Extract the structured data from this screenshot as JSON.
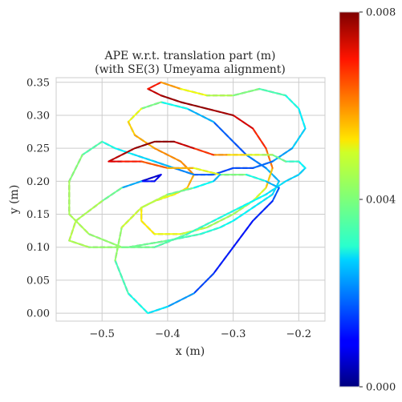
{
  "chart_data": {
    "type": "line",
    "title": "APE w.r.t. translation part (m)",
    "subtitle": "(with SE(3) Umeyama alignment)",
    "xlabel": "x (m)",
    "ylabel": "y (m)",
    "xlim": [
      -0.57,
      -0.16
    ],
    "ylim": [
      -0.012,
      0.357
    ],
    "xticks": [
      -0.5,
      -0.4,
      -0.3,
      -0.2
    ],
    "xtick_labels": [
      "−0.5",
      "−0.4",
      "−0.3",
      "−0.2"
    ],
    "yticks": [
      0.0,
      0.05,
      0.1,
      0.15,
      0.2,
      0.25,
      0.3,
      0.35
    ],
    "ytick_labels": [
      "0.00",
      "0.05",
      "0.10",
      "0.15",
      "0.20",
      "0.25",
      "0.30",
      "0.35"
    ],
    "grid": true,
    "colorbar": {
      "colormap": "jet",
      "min": 0.0,
      "max": 0.008,
      "ticks": [
        0.0,
        0.004,
        0.008
      ],
      "tick_labels": [
        "0.000",
        "0.004",
        "0.008"
      ],
      "placement": "right"
    },
    "series": [
      {
        "style": "reference-dashed-gray",
        "x": [
          -0.44,
          -0.41,
          -0.42,
          -0.44,
          -0.47,
          -0.5,
          -0.54,
          -0.55,
          -0.52,
          -0.46,
          -0.4,
          -0.35,
          -0.32,
          -0.3,
          -0.27,
          -0.24,
          -0.23,
          -0.25,
          -0.28,
          -0.3,
          -0.33,
          -0.37,
          -0.41,
          -0.44,
          -0.46,
          -0.45,
          -0.42,
          -0.38,
          -0.36,
          -0.37,
          -0.39,
          -0.42,
          -0.44,
          -0.44,
          -0.42,
          -0.38,
          -0.34,
          -0.3,
          -0.27,
          -0.25,
          -0.24,
          -0.25,
          -0.27,
          -0.3,
          -0.34,
          -0.38,
          -0.41,
          -0.43,
          -0.41,
          -0.38,
          -0.34,
          -0.3,
          -0.26,
          -0.22,
          -0.2,
          -0.19,
          -0.21,
          -0.24,
          -0.27,
          -0.3,
          -0.33,
          -0.36,
          -0.39,
          -0.42,
          -0.45,
          -0.48,
          -0.5,
          -0.53,
          -0.55,
          -0.55,
          -0.52,
          -0.47,
          -0.42,
          -0.37,
          -0.33,
          -0.29,
          -0.25,
          -0.22,
          -0.2,
          -0.19,
          -0.2,
          -0.22,
          -0.24,
          -0.26,
          -0.28,
          -0.31,
          -0.33,
          -0.36,
          -0.39,
          -0.42,
          -0.45,
          -0.47,
          -0.49,
          -0.47,
          -0.44,
          -0.4,
          -0.36,
          -0.32,
          -0.28,
          -0.25,
          -0.23,
          -0.24,
          -0.27,
          -0.3,
          -0.33,
          -0.36,
          -0.4,
          -0.43,
          -0.46,
          -0.48,
          -0.47,
          -0.44,
          -0.4,
          -0.36,
          -0.33,
          -0.32
        ],
        "y": [
          0.2,
          0.21,
          0.2,
          0.2,
          0.19,
          0.17,
          0.14,
          0.11,
          0.1,
          0.1,
          0.11,
          0.12,
          0.13,
          0.14,
          0.16,
          0.18,
          0.2,
          0.22,
          0.24,
          0.26,
          0.29,
          0.31,
          0.32,
          0.31,
          0.29,
          0.27,
          0.25,
          0.23,
          0.21,
          0.19,
          0.18,
          0.17,
          0.16,
          0.14,
          0.12,
          0.12,
          0.13,
          0.15,
          0.17,
          0.19,
          0.22,
          0.25,
          0.28,
          0.3,
          0.31,
          0.32,
          0.33,
          0.34,
          0.35,
          0.34,
          0.33,
          0.33,
          0.34,
          0.33,
          0.31,
          0.28,
          0.25,
          0.23,
          0.22,
          0.22,
          0.21,
          0.21,
          0.22,
          0.23,
          0.24,
          0.25,
          0.26,
          0.24,
          0.2,
          0.15,
          0.12,
          0.1,
          0.1,
          0.12,
          0.14,
          0.16,
          0.18,
          0.2,
          0.21,
          0.22,
          0.23,
          0.23,
          0.24,
          0.24,
          0.24,
          0.24,
          0.24,
          0.25,
          0.26,
          0.26,
          0.25,
          0.24,
          0.23,
          0.23,
          0.23,
          0.22,
          0.22,
          0.21,
          0.21,
          0.2,
          0.19,
          0.17,
          0.14,
          0.1,
          0.06,
          0.03,
          0.01,
          0.0,
          0.03,
          0.08,
          0.13,
          0.16,
          0.18,
          0.19,
          0.2,
          0.21
        ]
      },
      {
        "style": "estimate-colormapped",
        "x": [
          -0.44,
          -0.41,
          -0.42,
          -0.44,
          -0.47,
          -0.5,
          -0.54,
          -0.55,
          -0.52,
          -0.46,
          -0.4,
          -0.35,
          -0.32,
          -0.3,
          -0.27,
          -0.24,
          -0.23,
          -0.25,
          -0.28,
          -0.3,
          -0.33,
          -0.37,
          -0.41,
          -0.44,
          -0.46,
          -0.45,
          -0.42,
          -0.38,
          -0.36,
          -0.37,
          -0.39,
          -0.42,
          -0.44,
          -0.44,
          -0.42,
          -0.38,
          -0.34,
          -0.3,
          -0.27,
          -0.25,
          -0.24,
          -0.25,
          -0.27,
          -0.3,
          -0.34,
          -0.38,
          -0.41,
          -0.43,
          -0.41,
          -0.38,
          -0.34,
          -0.3,
          -0.26,
          -0.22,
          -0.2,
          -0.19,
          -0.21,
          -0.24,
          -0.27,
          -0.3,
          -0.33,
          -0.36,
          -0.39,
          -0.42,
          -0.45,
          -0.48,
          -0.5,
          -0.53,
          -0.55,
          -0.55,
          -0.52,
          -0.47,
          -0.42,
          -0.37,
          -0.33,
          -0.29,
          -0.25,
          -0.22,
          -0.2,
          -0.19,
          -0.2,
          -0.22,
          -0.24,
          -0.26,
          -0.28,
          -0.31,
          -0.33,
          -0.36,
          -0.39,
          -0.42,
          -0.45,
          -0.47,
          -0.49,
          -0.47,
          -0.44,
          -0.4,
          -0.36,
          -0.32,
          -0.28,
          -0.25,
          -0.23,
          -0.24,
          -0.27,
          -0.3,
          -0.33,
          -0.36,
          -0.4,
          -0.43,
          -0.46,
          -0.48,
          -0.47,
          -0.44,
          -0.4,
          -0.36,
          -0.33,
          -0.32
        ],
        "y": [
          0.2,
          0.21,
          0.2,
          0.2,
          0.19,
          0.17,
          0.14,
          0.11,
          0.1,
          0.1,
          0.11,
          0.12,
          0.13,
          0.14,
          0.16,
          0.18,
          0.2,
          0.22,
          0.24,
          0.26,
          0.29,
          0.31,
          0.32,
          0.31,
          0.29,
          0.27,
          0.25,
          0.23,
          0.21,
          0.19,
          0.18,
          0.17,
          0.16,
          0.14,
          0.12,
          0.12,
          0.13,
          0.15,
          0.17,
          0.19,
          0.22,
          0.25,
          0.28,
          0.3,
          0.31,
          0.32,
          0.33,
          0.34,
          0.35,
          0.34,
          0.33,
          0.33,
          0.34,
          0.33,
          0.31,
          0.28,
          0.25,
          0.23,
          0.22,
          0.22,
          0.21,
          0.21,
          0.22,
          0.23,
          0.24,
          0.25,
          0.26,
          0.24,
          0.2,
          0.15,
          0.12,
          0.1,
          0.1,
          0.12,
          0.14,
          0.16,
          0.18,
          0.2,
          0.21,
          0.22,
          0.23,
          0.23,
          0.24,
          0.24,
          0.24,
          0.24,
          0.24,
          0.25,
          0.26,
          0.26,
          0.25,
          0.24,
          0.23,
          0.23,
          0.23,
          0.22,
          0.22,
          0.21,
          0.21,
          0.2,
          0.19,
          0.17,
          0.14,
          0.1,
          0.06,
          0.03,
          0.01,
          0.0,
          0.03,
          0.08,
          0.13,
          0.16,
          0.18,
          0.19,
          0.2,
          0.21
        ],
        "error": [
          0.0005,
          0.0008,
          0.001,
          0.0012,
          0.0035,
          0.0042,
          0.0045,
          0.0044,
          0.0043,
          0.004,
          0.0037,
          0.0034,
          0.0032,
          0.003,
          0.0029,
          0.0028,
          0.0026,
          0.0022,
          0.0018,
          0.0015,
          0.002,
          0.0028,
          0.0034,
          0.0045,
          0.0052,
          0.0055,
          0.0058,
          0.006,
          0.0058,
          0.0055,
          0.005,
          0.0048,
          0.005,
          0.0052,
          0.0051,
          0.0047,
          0.0044,
          0.0042,
          0.0044,
          0.005,
          0.0058,
          0.0064,
          0.007,
          0.0076,
          0.0078,
          0.0079,
          0.0077,
          0.0072,
          0.0064,
          0.0052,
          0.0046,
          0.0042,
          0.0038,
          0.0034,
          0.003,
          0.0028,
          0.0025,
          0.002,
          0.0017,
          0.0015,
          0.0016,
          0.0018,
          0.0023,
          0.0026,
          0.0028,
          0.003,
          0.0034,
          0.0039,
          0.0042,
          0.0044,
          0.0043,
          0.004,
          0.0038,
          0.0035,
          0.0033,
          0.0031,
          0.0029,
          0.0027,
          0.0026,
          0.0027,
          0.0032,
          0.0036,
          0.0041,
          0.0046,
          0.005,
          0.0055,
          0.0062,
          0.007,
          0.0078,
          0.0079,
          0.0078,
          0.0076,
          0.0074,
          0.007,
          0.0066,
          0.006,
          0.0052,
          0.0044,
          0.0036,
          0.0028,
          0.002,
          0.0014,
          0.0012,
          0.0011,
          0.0013,
          0.0018,
          0.0026,
          0.003,
          0.0033,
          0.0038,
          0.0045,
          0.0047,
          0.0042,
          0.0035,
          0.0026,
          0.0022
        ]
      }
    ]
  }
}
